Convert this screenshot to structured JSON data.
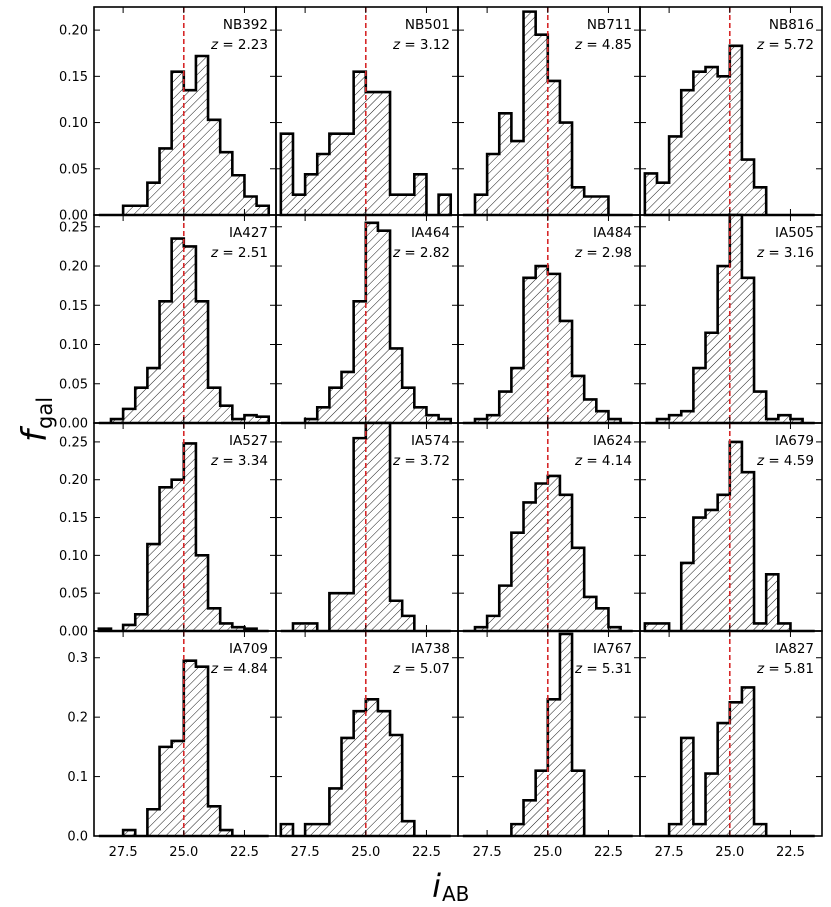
{
  "chart_data": {
    "type": "histogram-grid",
    "xlabel": "i",
    "xlabel_sub": "AB",
    "ylabel": "f",
    "ylabel_sub": "gal",
    "xlim": [
      28.7,
      21.2
    ],
    "x_ticks": [
      27.5,
      25.0,
      22.5
    ],
    "x_tick_labels": [
      "27.5",
      "25.0",
      "22.5"
    ],
    "bin_edges": [
      28.5,
      28.0,
      27.5,
      27.0,
      26.5,
      26.0,
      25.5,
      25.0,
      24.5,
      24.0,
      23.5,
      23.0,
      22.5,
      22.0,
      21.5
    ],
    "cut_line_x": 25.0,
    "cut_line_color": "#d62728",
    "hist_color": "#000000",
    "rows": [
      {
        "ylim": [
          0,
          0.225
        ],
        "y_ticks": [
          0.0,
          0.05,
          0.1,
          0.15,
          0.2
        ],
        "y_tick_labels": [
          "0.00",
          "0.05",
          "0.10",
          "0.15",
          "0.20"
        ]
      },
      {
        "ylim": [
          0,
          0.265
        ],
        "y_ticks": [
          0.0,
          0.05,
          0.1,
          0.15,
          0.2,
          0.25
        ],
        "y_tick_labels": [
          "0.00",
          "0.05",
          "0.10",
          "0.15",
          "0.20",
          "0.25"
        ]
      },
      {
        "ylim": [
          0,
          0.275
        ],
        "y_ticks": [
          0.0,
          0.05,
          0.1,
          0.15,
          0.2,
          0.25
        ],
        "y_tick_labels": [
          "0.00",
          "0.05",
          "0.10",
          "0.15",
          "0.20",
          "0.25"
        ]
      },
      {
        "ylim": [
          0,
          0.345
        ],
        "y_ticks": [
          0.0,
          0.1,
          0.2,
          0.3
        ],
        "y_tick_labels": [
          "0.0",
          "0.1",
          "0.2",
          "0.3"
        ]
      }
    ],
    "panels": [
      {
        "filter": "NB392",
        "z_label": "z",
        "z_value": "= 2.23",
        "values": [
          0,
          0,
          0.01,
          0.01,
          0.035,
          0.072,
          0.155,
          0.135,
          0.172,
          0.103,
          0.068,
          0.043,
          0.02,
          0.01
        ]
      },
      {
        "filter": "NB501",
        "z_label": "z",
        "z_value": "= 3.12",
        "values": [
          0.088,
          0.022,
          0.044,
          0.066,
          0.088,
          0.088,
          0.155,
          0.133,
          0.133,
          0.022,
          0.022,
          0.044,
          0,
          0.022
        ]
      },
      {
        "filter": "NB711",
        "z_label": "z",
        "z_value": "= 4.85",
        "values": [
          0,
          0.022,
          0.066,
          0.11,
          0.08,
          0.22,
          0.195,
          0.145,
          0.1,
          0.03,
          0.02,
          0.02,
          0,
          0
        ]
      },
      {
        "filter": "NB816",
        "z_label": "z",
        "z_value": "= 5.72",
        "values": [
          0.045,
          0.035,
          0.085,
          0.135,
          0.155,
          0.16,
          0.15,
          0.183,
          0.06,
          0.03,
          0,
          0,
          0,
          0
        ]
      },
      {
        "filter": "IA427",
        "z_label": "z",
        "z_value": "= 2.51",
        "values": [
          0,
          0.005,
          0.018,
          0.045,
          0.07,
          0.155,
          0.235,
          0.225,
          0.155,
          0.045,
          0.022,
          0.005,
          0.01,
          0.008
        ]
      },
      {
        "filter": "IA464",
        "z_label": "z",
        "z_value": "= 2.82",
        "values": [
          0,
          0,
          0.005,
          0.02,
          0.045,
          0.065,
          0.155,
          0.255,
          0.245,
          0.095,
          0.045,
          0.02,
          0.01,
          0.005
        ]
      },
      {
        "filter": "IA484",
        "z_label": "z",
        "z_value": "= 2.98",
        "values": [
          0,
          0.005,
          0.01,
          0.04,
          0.07,
          0.185,
          0.2,
          0.19,
          0.13,
          0.06,
          0.03,
          0.015,
          0.005,
          0
        ]
      },
      {
        "filter": "IA505",
        "z_label": "z",
        "z_value": "= 3.16",
        "values": [
          0,
          0.005,
          0.01,
          0.015,
          0.07,
          0.115,
          0.2,
          0.265,
          0.185,
          0.04,
          0.005,
          0.01,
          0.005,
          0
        ]
      },
      {
        "filter": "IA527",
        "z_label": "z",
        "z_value": "= 3.34",
        "values": [
          0.003,
          0,
          0.008,
          0.022,
          0.115,
          0.19,
          0.2,
          0.248,
          0.1,
          0.03,
          0.01,
          0.005,
          0.003,
          0
        ]
      },
      {
        "filter": "IA574",
        "z_label": "z",
        "z_value": "= 3.72",
        "values": [
          0,
          0.01,
          0.01,
          0,
          0.05,
          0.05,
          0.255,
          0.275,
          0.275,
          0.04,
          0.02,
          0,
          0,
          0
        ]
      },
      {
        "filter": "IA624",
        "z_label": "z",
        "z_value": "= 4.14",
        "values": [
          0,
          0.005,
          0.02,
          0.06,
          0.13,
          0.17,
          0.195,
          0.205,
          0.18,
          0.11,
          0.045,
          0.03,
          0.005,
          0
        ]
      },
      {
        "filter": "IA679",
        "z_label": "z",
        "z_value": "= 4.59",
        "values": [
          0.01,
          0.01,
          0,
          0.09,
          0.15,
          0.16,
          0.18,
          0.25,
          0.21,
          0.01,
          0.075,
          0.01,
          0,
          0
        ]
      },
      {
        "filter": "IA709",
        "z_label": "z",
        "z_value": "= 4.84",
        "values": [
          0,
          0,
          0.01,
          0,
          0.045,
          0.15,
          0.16,
          0.295,
          0.285,
          0.05,
          0.01,
          0,
          0,
          0
        ]
      },
      {
        "filter": "IA738",
        "z_label": "z",
        "z_value": "= 5.07",
        "values": [
          0.02,
          0,
          0.02,
          0.02,
          0.08,
          0.165,
          0.21,
          0.23,
          0.21,
          0.17,
          0.025,
          0,
          0,
          0
        ]
      },
      {
        "filter": "IA767",
        "z_label": "z",
        "z_value": "= 5.31",
        "values": [
          0,
          0,
          0,
          0,
          0.02,
          0.06,
          0.11,
          0.23,
          0.34,
          0.11,
          0,
          0,
          0,
          0
        ]
      },
      {
        "filter": "IA827",
        "z_label": "z",
        "z_value": "= 5.81",
        "values": [
          0,
          0,
          0.02,
          0.165,
          0.02,
          0.105,
          0.19,
          0.225,
          0.25,
          0.02,
          0,
          0,
          0,
          0
        ]
      }
    ]
  }
}
